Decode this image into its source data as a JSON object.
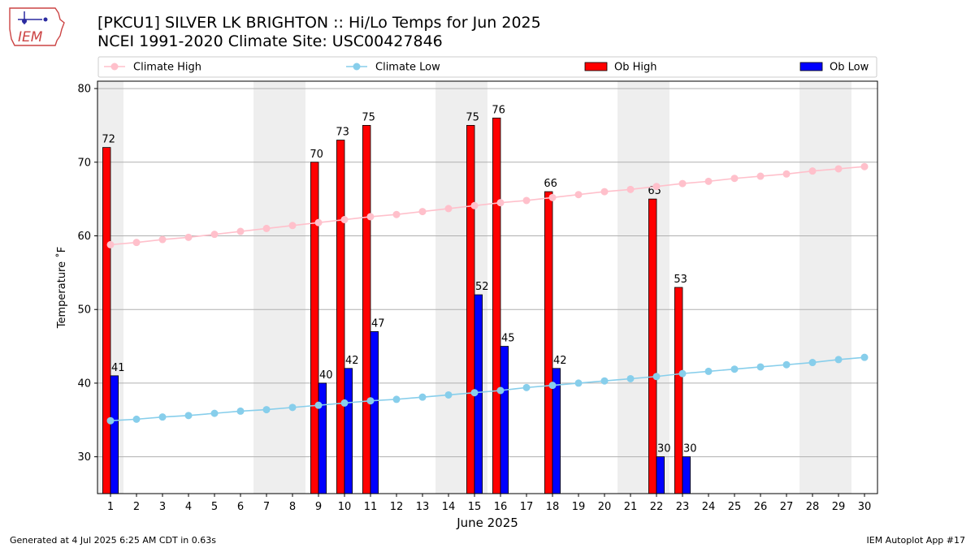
{
  "header": {
    "title_line1": "[PKCU1] SILVER LK BRIGHTON :: Hi/Lo Temps for Jun 2025",
    "title_line2": "NCEI 1991-2020 Climate Site: USC00427846"
  },
  "logo": {
    "text": "IEM"
  },
  "footer": {
    "left": "Generated at 4 Jul 2025 6:25 AM CDT in 0.63s",
    "right": "IEM Autoplot App #17"
  },
  "chart_data": {
    "type": "bar",
    "xlabel": "June 2025",
    "ylabel": "Temperature ˚F",
    "ylim": [
      25,
      81
    ],
    "yticks": [
      30,
      40,
      50,
      60,
      70,
      80
    ],
    "xlim": [
      0.5,
      30.5
    ],
    "x": [
      1,
      2,
      3,
      4,
      5,
      6,
      7,
      8,
      9,
      10,
      11,
      12,
      13,
      14,
      15,
      16,
      17,
      18,
      19,
      20,
      21,
      22,
      23,
      24,
      25,
      26,
      27,
      28,
      29,
      30
    ],
    "grid": "horizontal",
    "legend_position": "top",
    "weekend_shading": [
      [
        0.5,
        1.5
      ],
      [
        6.5,
        8.5
      ],
      [
        13.5,
        15.5
      ],
      [
        20.5,
        22.5
      ],
      [
        27.5,
        29.5
      ]
    ],
    "series": [
      {
        "name": "Climate High",
        "kind": "line",
        "color": "#ffc0cb",
        "values": [
          58.8,
          59.1,
          59.5,
          59.8,
          60.2,
          60.6,
          61.0,
          61.4,
          61.8,
          62.2,
          62.6,
          62.9,
          63.3,
          63.7,
          64.1,
          64.5,
          64.8,
          65.2,
          65.6,
          66.0,
          66.3,
          66.7,
          67.1,
          67.4,
          67.8,
          68.1,
          68.4,
          68.8,
          69.1,
          69.4
        ]
      },
      {
        "name": "Climate Low",
        "kind": "line",
        "color": "#87ceeb",
        "values": [
          34.9,
          35.1,
          35.4,
          35.6,
          35.9,
          36.2,
          36.4,
          36.7,
          37.0,
          37.3,
          37.6,
          37.8,
          38.1,
          38.4,
          38.7,
          39.0,
          39.4,
          39.7,
          40.0,
          40.3,
          40.6,
          40.9,
          41.3,
          41.6,
          41.9,
          42.2,
          42.5,
          42.8,
          43.2,
          43.5
        ]
      },
      {
        "name": "Ob High",
        "kind": "bar",
        "color": "#ff0000",
        "values": [
          72,
          null,
          null,
          null,
          null,
          null,
          null,
          null,
          70,
          73,
          75,
          null,
          null,
          null,
          75,
          76,
          null,
          66,
          null,
          null,
          null,
          65,
          53,
          null,
          null,
          null,
          null,
          null,
          null,
          null
        ]
      },
      {
        "name": "Ob Low",
        "kind": "bar",
        "color": "#0000ff",
        "values": [
          41,
          null,
          null,
          null,
          null,
          null,
          null,
          null,
          40,
          42,
          47,
          null,
          null,
          null,
          52,
          45,
          null,
          42,
          null,
          null,
          null,
          30,
          30,
          null,
          null,
          null,
          null,
          null,
          null,
          null
        ]
      }
    ]
  }
}
